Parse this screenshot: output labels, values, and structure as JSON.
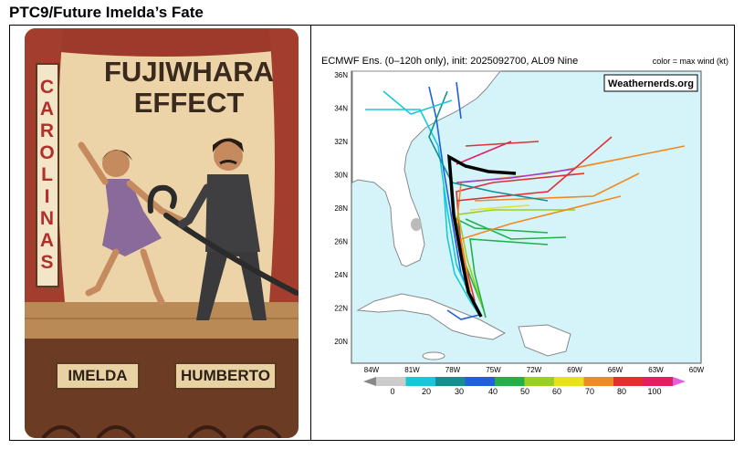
{
  "title": "PTC9/Future Imelda’s Fate",
  "cartoon": {
    "side_sign": "CAROLINAS",
    "headline": [
      "FUJIWHARA",
      "EFFECT"
    ],
    "left_label": "IMELDA",
    "right_label": "HUMBERTO"
  },
  "map": {
    "header": "ECMWF Ens. (0–120h only), init: 2025092700, AL09 Nine",
    "legend_note": "color = max wind (kt)",
    "watermark": "Weathernerds.org",
    "lat_labels": [
      "36N",
      "34N",
      "32N",
      "30N",
      "28N",
      "26N",
      "24N",
      "22N",
      "20N"
    ],
    "lon_labels": [
      "84W",
      "81W",
      "78W",
      "75W",
      "72W",
      "69W",
      "66W",
      "63W",
      "60W"
    ],
    "colorbar_labels": [
      0,
      20,
      30,
      40,
      50,
      60,
      70,
      80,
      100
    ]
  }
}
